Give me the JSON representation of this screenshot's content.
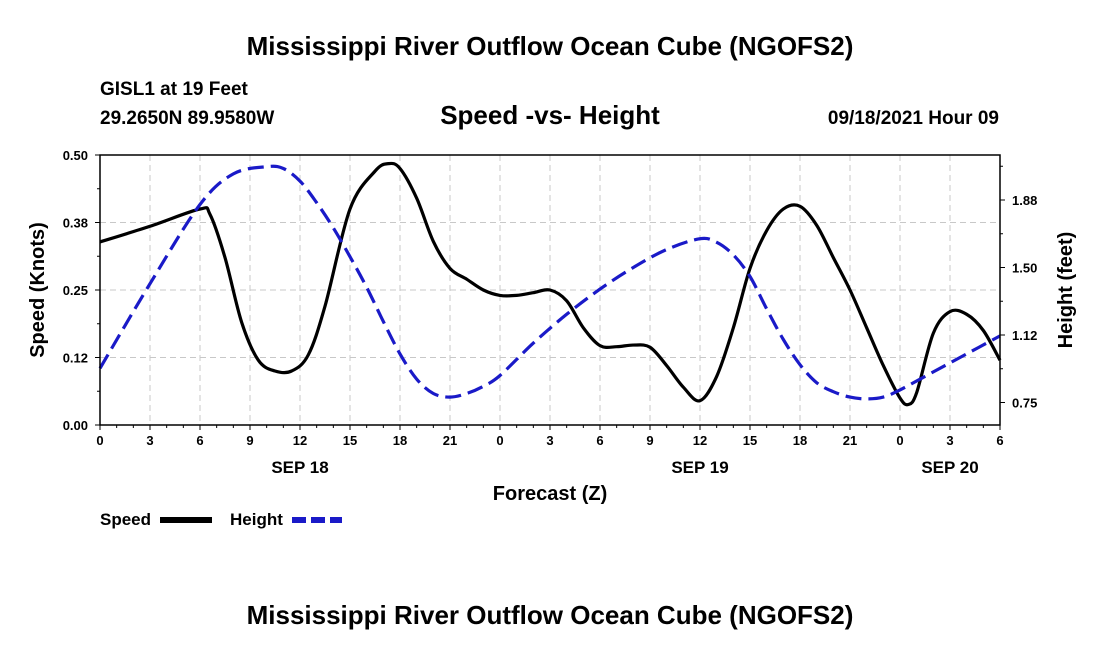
{
  "title": "Mississippi River Outflow Ocean Cube (NGOFS2)",
  "footer_title": "Mississippi River Outflow Ocean Cube (NGOFS2)",
  "station": {
    "name_line": "GISL1 at 19 Feet",
    "coords_line": "29.2650N  89.9580W"
  },
  "subtitle": "Speed -vs- Height",
  "timestamp": "09/18/2021 Hour 09",
  "colors": {
    "speed": "#000000",
    "height": "#1a1ac8",
    "grid": "#c8c8c8"
  },
  "chart_data": {
    "type": "line",
    "xlabel": "Forecast (Z)",
    "ylabel_left": "Speed (Knots)",
    "ylabel_right": "Height (feet)",
    "x_unit": "hours since 2021-09-18 00Z",
    "xlim": [
      0,
      54
    ],
    "ylim_left": [
      0,
      0.5
    ],
    "ylim_right": [
      0.625,
      2.125
    ],
    "grid": true,
    "x_ticks": [
      {
        "x": 0,
        "label": "0"
      },
      {
        "x": 3,
        "label": "3"
      },
      {
        "x": 6,
        "label": "6"
      },
      {
        "x": 9,
        "label": "9"
      },
      {
        "x": 12,
        "label": "12"
      },
      {
        "x": 15,
        "label": "15"
      },
      {
        "x": 18,
        "label": "18"
      },
      {
        "x": 21,
        "label": "21"
      },
      {
        "x": 24,
        "label": "0"
      },
      {
        "x": 27,
        "label": "3"
      },
      {
        "x": 30,
        "label": "6"
      },
      {
        "x": 33,
        "label": "9"
      },
      {
        "x": 36,
        "label": "12"
      },
      {
        "x": 39,
        "label": "15"
      },
      {
        "x": 42,
        "label": "18"
      },
      {
        "x": 45,
        "label": "21"
      },
      {
        "x": 48,
        "label": "0"
      },
      {
        "x": 51,
        "label": "3"
      },
      {
        "x": 54,
        "label": "6"
      }
    ],
    "date_labels": [
      {
        "x": 12,
        "label": "SEP 18"
      },
      {
        "x": 36,
        "label": "SEP 19"
      },
      {
        "x": 51,
        "label": "SEP 20"
      }
    ],
    "left_ticks": [
      {
        "y": 0.0,
        "label": "0.00"
      },
      {
        "y": 0.125,
        "label": "0.12"
      },
      {
        "y": 0.25,
        "label": "0.25"
      },
      {
        "y": 0.375,
        "label": "0.38"
      },
      {
        "y": 0.5,
        "label": "0.50"
      }
    ],
    "right_ticks": [
      {
        "y": 0.75,
        "label": "0.75"
      },
      {
        "y": 1.125,
        "label": "1.12"
      },
      {
        "y": 1.5,
        "label": "1.50"
      },
      {
        "y": 1.875,
        "label": "1.88"
      }
    ],
    "series": [
      {
        "name": "Speed",
        "axis": "left",
        "style": "solid",
        "x": [
          0,
          3,
          6,
          6.6,
          7.5,
          8.5,
          9.5,
          10.5,
          11.5,
          12.5,
          13.5,
          15,
          16.5,
          17.3,
          18,
          19,
          20,
          21,
          22,
          23,
          24,
          25,
          26,
          27,
          28,
          29,
          30,
          31,
          32,
          33,
          34,
          35,
          36,
          37,
          38,
          39,
          40,
          41,
          42,
          43,
          44,
          45,
          46,
          47,
          48,
          48.5,
          49,
          50,
          51,
          52,
          53,
          54
        ],
        "y": [
          0.339,
          0.368,
          0.4,
          0.39,
          0.31,
          0.19,
          0.12,
          0.1,
          0.1,
          0.13,
          0.22,
          0.4,
          0.47,
          0.484,
          0.475,
          0.42,
          0.34,
          0.29,
          0.27,
          0.25,
          0.24,
          0.24,
          0.245,
          0.25,
          0.23,
          0.18,
          0.147,
          0.145,
          0.148,
          0.144,
          0.11,
          0.07,
          0.045,
          0.09,
          0.18,
          0.29,
          0.36,
          0.4,
          0.405,
          0.37,
          0.31,
          0.25,
          0.18,
          0.11,
          0.05,
          0.038,
          0.06,
          0.17,
          0.21,
          0.205,
          0.175,
          0.12
        ]
      },
      {
        "name": "Height",
        "axis": "right",
        "style": "dashed",
        "x": [
          0,
          3,
          6,
          8,
          10,
          11,
          12,
          13,
          14,
          15,
          16,
          17,
          18,
          19,
          20,
          21,
          22,
          23,
          24,
          26,
          28,
          30,
          32,
          34,
          36,
          37,
          38,
          39,
          40,
          41,
          42,
          43,
          44,
          45,
          46,
          47,
          48,
          50,
          52,
          54
        ],
        "y": [
          0.94,
          1.41,
          1.85,
          2.02,
          2.06,
          2.05,
          1.98,
          1.86,
          1.72,
          1.56,
          1.39,
          1.2,
          1.02,
          0.88,
          0.8,
          0.78,
          0.8,
          0.84,
          0.9,
          1.08,
          1.24,
          1.38,
          1.5,
          1.6,
          1.66,
          1.64,
          1.57,
          1.45,
          1.27,
          1.1,
          0.96,
          0.86,
          0.81,
          0.78,
          0.77,
          0.78,
          0.82,
          0.92,
          1.02,
          1.12
        ]
      }
    ]
  },
  "legend": {
    "speed_label": "Speed",
    "height_label": "Height"
  }
}
